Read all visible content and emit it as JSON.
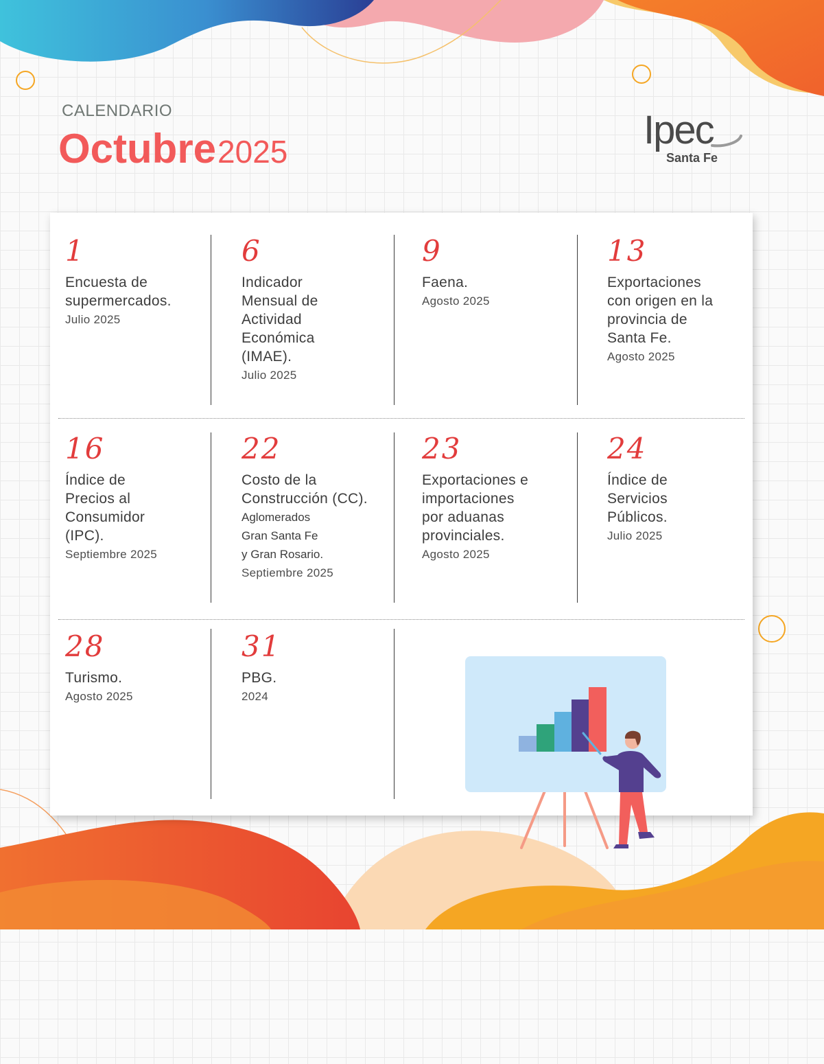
{
  "header": {
    "label": "CALENDARIO",
    "month": "Octubre",
    "year": "2025"
  },
  "logo": {
    "word": "Ipec",
    "sub": "Santa Fe"
  },
  "events": [
    {
      "day": "1",
      "title": [
        "Encuesta de",
        "supermercados."
      ],
      "sub": [],
      "period": "Julio 2025"
    },
    {
      "day": "6",
      "title": [
        "Indicador",
        "Mensual de",
        "Actividad",
        "Económica",
        "(IMAE)."
      ],
      "sub": [],
      "period": "Julio 2025"
    },
    {
      "day": "9",
      "title": [
        "Faena."
      ],
      "sub": [],
      "period": "Agosto 2025"
    },
    {
      "day": "13",
      "title": [
        "Exportaciones",
        "con origen en la",
        "provincia de",
        "Santa Fe."
      ],
      "sub": [],
      "period": "Agosto 2025"
    },
    {
      "day": "16",
      "title": [
        "Índice de",
        "Precios al",
        "Consumidor",
        "(IPC)."
      ],
      "sub": [],
      "period": "Septiembre 2025"
    },
    {
      "day": "22",
      "title": [
        "Costo de la",
        "Construcción (CC)."
      ],
      "sub": [
        "Aglomerados",
        "Gran Santa Fe",
        "y Gran Rosario."
      ],
      "period": "Septiembre 2025"
    },
    {
      "day": "23",
      "title": [
        "Exportaciones e",
        "importaciones",
        "por aduanas",
        "provinciales."
      ],
      "sub": [],
      "period": "Agosto 2025"
    },
    {
      "day": "24",
      "title": [
        "Índice de",
        "Servicios",
        "Públicos."
      ],
      "sub": [],
      "period": "Julio 2025"
    },
    {
      "day": "28",
      "title": [
        "Turismo."
      ],
      "sub": [],
      "period": "Agosto 2025"
    },
    {
      "day": "31",
      "title": [
        "PBG."
      ],
      "sub": [],
      "period": "2024"
    }
  ],
  "colors": {
    "accent": "#f25a5a",
    "day_number": "#e23c3c",
    "text": "#3d3d3d"
  }
}
